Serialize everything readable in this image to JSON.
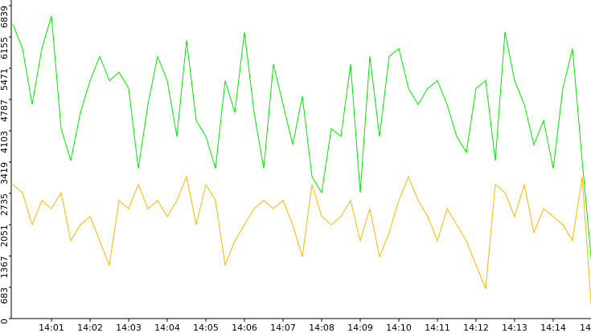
{
  "chart_data": {
    "type": "line",
    "x": [
      840,
      840.25,
      840.5,
      840.75,
      841,
      841.25,
      841.5,
      841.75,
      842,
      842.25,
      842.5,
      842.75,
      843,
      843.25,
      843.5,
      843.75,
      844,
      844.25,
      844.5,
      844.75,
      845,
      845.25,
      845.5,
      845.75,
      846,
      846.25,
      846.5,
      846.75,
      847,
      847.25,
      847.5,
      847.75,
      848,
      848.25,
      848.5,
      848.75,
      849,
      849.25,
      849.5,
      849.75,
      850,
      850.25,
      850.5,
      850.75,
      851,
      851.25,
      851.5,
      851.75,
      852,
      852.25,
      852.5,
      852.75,
      853,
      853.25,
      853.5,
      853.75,
      854,
      854.25,
      854.5,
      854.75,
      855
    ],
    "series": [
      {
        "color": "#00e600",
        "values": [
          6430,
          5900,
          4680,
          5900,
          6610,
          4150,
          3450,
          4500,
          5200,
          5730,
          5200,
          5380,
          5030,
          3280,
          4680,
          5730,
          5200,
          3980,
          6080,
          4330,
          3980,
          3280,
          5200,
          4500,
          6260,
          4500,
          3280,
          5560,
          4680,
          3800,
          4860,
          3100,
          2750,
          4150,
          3980,
          5560,
          2750,
          5730,
          3980,
          5730,
          5900,
          5030,
          4680,
          5030,
          5200,
          4680,
          3980,
          3630,
          5030,
          5200,
          3450,
          6260,
          5200,
          4680,
          3800,
          4330,
          3280,
          5030,
          5900,
          3450,
          1170
        ]
      },
      {
        "color": "#f5b800",
        "values": [
          2930,
          2750,
          2050,
          2580,
          2400,
          2750,
          1700,
          2050,
          2230,
          1700,
          1170,
          2580,
          2400,
          2930,
          2400,
          2580,
          2230,
          2580,
          3100,
          2050,
          2930,
          2580,
          1170,
          1700,
          2050,
          2400,
          2580,
          2400,
          2580,
          2050,
          1350,
          2930,
          2230,
          2050,
          2230,
          2580,
          1700,
          2400,
          1350,
          1880,
          2580,
          3100,
          2580,
          2230,
          1700,
          2400,
          2050,
          1700,
          1170,
          650,
          2930,
          2750,
          2230,
          2930,
          1880,
          2400,
          2230,
          2050,
          1700,
          3100,
          120
        ]
      }
    ],
    "xlim": [
      840,
      855
    ],
    "xticks": [
      {
        "value": 841,
        "label": "14:01"
      },
      {
        "value": 842,
        "label": "14:02"
      },
      {
        "value": 843,
        "label": "14:03"
      },
      {
        "value": 844,
        "label": "14:04"
      },
      {
        "value": 845,
        "label": "14:05"
      },
      {
        "value": 846,
        "label": "14:06"
      },
      {
        "value": 847,
        "label": "14:07"
      },
      {
        "value": 848,
        "label": "14:08"
      },
      {
        "value": 849,
        "label": "14:09"
      },
      {
        "value": 850,
        "label": "14:10"
      },
      {
        "value": 851,
        "label": "14:11"
      },
      {
        "value": 852,
        "label": "14:12"
      },
      {
        "value": 853,
        "label": "14:13"
      },
      {
        "value": 854,
        "label": "14:14"
      },
      {
        "value": 855,
        "label": "14"
      }
    ],
    "ylim": [
      0,
      6839
    ],
    "yticks": [
      0,
      683,
      1367,
      2051,
      2735,
      3419,
      4103,
      4787,
      5471,
      6155,
      6839
    ]
  }
}
